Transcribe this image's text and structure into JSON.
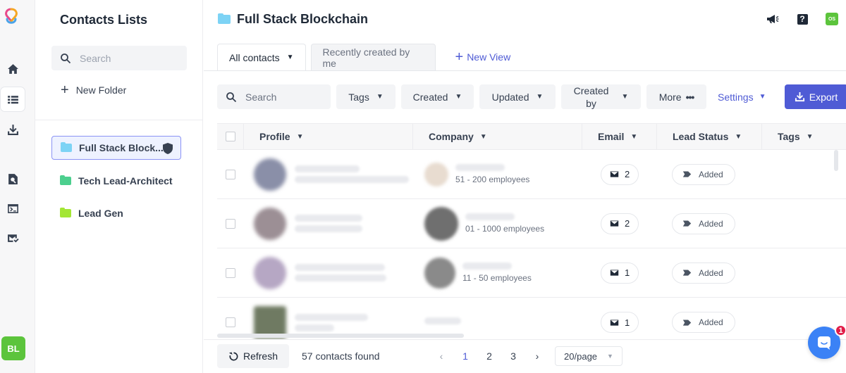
{
  "app": {
    "logo_icon": "app-logo-icon",
    "user_initials": "BL",
    "brand_color": "#4f5bd5",
    "accent_green": "#5cc43c"
  },
  "rail": {
    "items": [
      {
        "icon": "home-icon",
        "active": false
      },
      {
        "icon": "list-icon",
        "active": true
      },
      {
        "icon": "download-icon",
        "active": false
      },
      {
        "icon": "search-doc-icon",
        "active": false
      },
      {
        "icon": "terminal-icon",
        "active": false
      },
      {
        "icon": "mail-check-icon",
        "active": false
      }
    ]
  },
  "lists_panel": {
    "title": "Contacts Lists",
    "search_placeholder": "Search",
    "new_folder_label": "New Folder",
    "folders": [
      {
        "label": "Full Stack Block...",
        "color": "#7dd3f5",
        "selected": true
      },
      {
        "label": "Tech Lead-Architect",
        "color": "#4ccf8e",
        "selected": false
      },
      {
        "label": "Lead Gen",
        "color": "#a3e635",
        "selected": false
      }
    ]
  },
  "header": {
    "title": "Full Stack Blockchain",
    "user_badge": "OS",
    "help_label": "?"
  },
  "tabs": {
    "active": "All contacts",
    "inactive": "Recently created by me",
    "new_view": "New View"
  },
  "filters": {
    "search_placeholder": "Search",
    "tags": "Tags",
    "created": "Created",
    "updated": "Updated",
    "created_by_line1": "Created",
    "created_by_line2": "by",
    "more": "More",
    "settings": "Settings",
    "export": "Export"
  },
  "table": {
    "columns": [
      "Profile",
      "Company",
      "Email",
      "Lead Status",
      "Tags"
    ],
    "rows": [
      {
        "employees": "51 - 200 employees",
        "email_count": "2",
        "lead_status": "Added",
        "avatar_color": "#8a8fa8",
        "logo_color": "#e8dcd0"
      },
      {
        "employees": "01 - 1000 employees",
        "email_count": "2",
        "lead_status": "Added",
        "avatar_color": "#9c8f95",
        "logo_color": "#6f6f6f"
      },
      {
        "employees": "11 - 50 employees",
        "email_count": "1",
        "lead_status": "Added",
        "avatar_color": "#b6a7c4",
        "logo_color": "#8a8a8a"
      },
      {
        "employees": "",
        "email_count": "1",
        "lead_status": "Added",
        "avatar_color": "#6f7a62",
        "logo_color": "#ffffff"
      }
    ]
  },
  "footer": {
    "refresh": "Refresh",
    "found": "57 contacts found",
    "pages": [
      "1",
      "2",
      "3"
    ],
    "current_page": "1",
    "prev": "‹",
    "next": "›",
    "per_page": "20/page"
  },
  "chat": {
    "badge_count": "1"
  }
}
